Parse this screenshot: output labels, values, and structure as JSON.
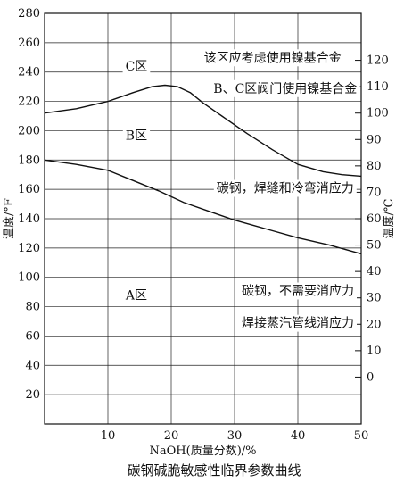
{
  "chart_data": {
    "type": "line",
    "caption": "碳钢碱脆敏感性临界参数曲线",
    "xlabel": "NaOH(质量分数)/%",
    "ylabel_left": "温度/°F",
    "ylabel_right": "温度/℃",
    "xlim": [
      0,
      50
    ],
    "ylim": [
      0,
      280
    ],
    "x_ticks": [
      10,
      20,
      30,
      40,
      50
    ],
    "y_ticks_left": [
      20,
      40,
      60,
      80,
      100,
      120,
      140,
      160,
      180,
      200,
      220,
      240,
      260,
      280
    ],
    "y_ticks_right": [
      {
        "label": "0",
        "f": 32
      },
      {
        "label": "10",
        "f": 50
      },
      {
        "label": "20",
        "f": 68
      },
      {
        "label": "30",
        "f": 86
      },
      {
        "label": "40",
        "f": 104
      },
      {
        "label": "50",
        "f": 122
      },
      {
        "label": "60",
        "f": 140
      },
      {
        "label": "70",
        "f": 158
      },
      {
        "label": "80",
        "f": 176
      },
      {
        "label": "90",
        "f": 194
      },
      {
        "label": "100",
        "f": 212
      },
      {
        "label": "110",
        "f": 230
      },
      {
        "label": "120",
        "f": 248
      }
    ],
    "grid": true,
    "series": [
      {
        "x": [
          0,
          5,
          10,
          14,
          17,
          19,
          21,
          23,
          25,
          28,
          32,
          36,
          40,
          44,
          47,
          50
        ],
        "y": [
          212,
          215,
          220,
          226,
          230,
          231,
          230,
          226,
          219,
          210,
          198,
          187,
          177,
          172,
          170,
          169
        ]
      },
      {
        "x": [
          0,
          5,
          10,
          14,
          18,
          22,
          26,
          30,
          35,
          40,
          45,
          50
        ],
        "y": [
          180,
          177,
          173,
          166,
          159,
          151,
          145,
          139,
          133,
          127,
          122,
          116
        ]
      }
    ],
    "annotations": [
      {
        "id": "c_zone",
        "text": "C区",
        "x": 14.5,
        "y": 244
      },
      {
        "id": "c_note",
        "text": "该区应考虑使用镍基合金",
        "x": 36,
        "y": 250
      },
      {
        "id": "bc_note",
        "text": "B、C区阀门使用镍基合金",
        "x": 38,
        "y": 229
      },
      {
        "id": "b_zone",
        "text": "B区",
        "x": 14.5,
        "y": 197
      },
      {
        "id": "b_note",
        "text": "碳钢，焊缝和冷弯消应力",
        "x": 38,
        "y": 161
      },
      {
        "id": "a_zone",
        "text": "A区",
        "x": 14.5,
        "y": 88
      },
      {
        "id": "a_note1",
        "text": "碳钢，不需要消应力",
        "x": 40,
        "y": 91
      },
      {
        "id": "a_note2",
        "text": "焊接蒸汽管线消应力",
        "x": 40,
        "y": 69
      }
    ]
  }
}
